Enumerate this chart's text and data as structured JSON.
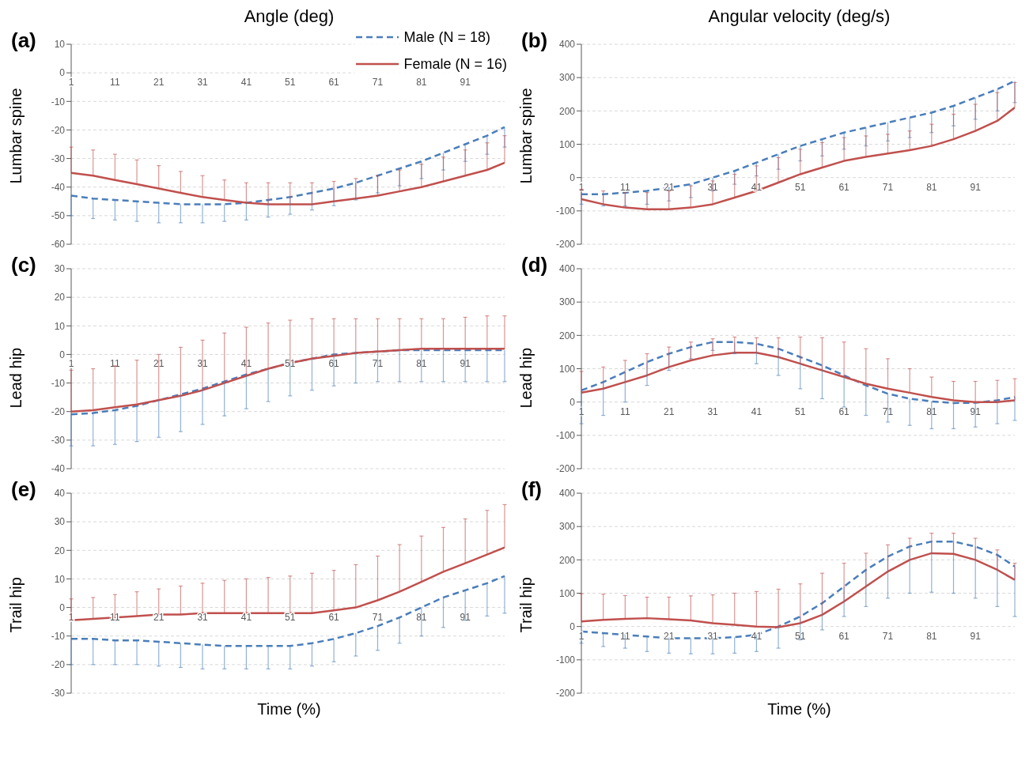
{
  "chart_data": [
    {
      "type": "line",
      "title": "Angle (deg)",
      "ylabel": "Lumbar spine",
      "annotations": [
        "(a)"
      ],
      "legend": "top right",
      "grid": "y",
      "marker": "none",
      "xlim": [
        1,
        100
      ],
      "xticks": [
        1,
        11,
        21,
        31,
        41,
        51,
        61,
        71,
        81,
        91
      ],
      "ylim": [
        -60,
        10
      ],
      "yticks": [
        -60,
        -50,
        -40,
        -30,
        -20,
        -10,
        0,
        10
      ],
      "x": [
        1,
        6,
        11,
        16,
        21,
        26,
        31,
        36,
        41,
        46,
        51,
        56,
        61,
        66,
        71,
        76,
        81,
        86,
        91,
        96,
        100
      ],
      "series": [
        {
          "name": "Male (N = 18)",
          "color": "#4a7ebb",
          "line_style": "dashed",
          "values": [
            -43,
            -44,
            -44.5,
            -45,
            -45.5,
            -46,
            -46,
            -46,
            -45.5,
            -44.5,
            -43.5,
            -42,
            -40.5,
            -38.5,
            -36,
            -33.5,
            -31,
            -28,
            -25,
            -22,
            -19
          ],
          "errors": [
            [
              -50,
              -43
            ],
            [
              -51,
              -44
            ],
            [
              -51.5,
              -44.5
            ],
            [
              -52,
              -45
            ],
            [
              -52.5,
              -45.5
            ],
            [
              -52.5,
              -46
            ],
            [
              -52.5,
              -46
            ],
            [
              -52,
              -46
            ],
            [
              -51.5,
              -45.5
            ],
            [
              -50.5,
              -44.5
            ],
            [
              -49.5,
              -43.5
            ],
            [
              -48,
              -42
            ],
            [
              -46.5,
              -40.5
            ],
            [
              -44.5,
              -38.5
            ],
            [
              -42,
              -36
            ],
            [
              -39.5,
              -33.5
            ],
            [
              -37,
              -31
            ],
            [
              -34,
              -28
            ],
            [
              -31,
              -25
            ],
            [
              -28.5,
              -22
            ],
            [
              -26,
              -19
            ]
          ]
        },
        {
          "name": "Female (N = 16)",
          "color": "#c0504d",
          "line_style": "solid",
          "values": [
            -35,
            -36,
            -37.5,
            -39,
            -40.5,
            -42,
            -43.5,
            -44.5,
            -45.5,
            -46,
            -46,
            -46,
            -45,
            -44,
            -43,
            -41.5,
            -40,
            -38,
            -36,
            -34,
            -31.5
          ],
          "errors": [
            [
              -35,
              -26
            ],
            [
              -36,
              -27
            ],
            [
              -37.5,
              -28.5
            ],
            [
              -39,
              -30.5
            ],
            [
              -40.5,
              -32.5
            ],
            [
              -42,
              -34.5
            ],
            [
              -43.5,
              -36
            ],
            [
              -44.5,
              -37.5
            ],
            [
              -45.5,
              -38.5
            ],
            [
              -46,
              -38.5
            ],
            [
              -46,
              -38.5
            ],
            [
              -46,
              -38.5
            ],
            [
              -45,
              -38
            ],
            [
              -44,
              -37
            ],
            [
              -43,
              -36
            ],
            [
              -41.5,
              -34
            ],
            [
              -40,
              -32
            ],
            [
              -38,
              -29.5
            ],
            [
              -36,
              -27
            ],
            [
              -34,
              -24.5
            ],
            [
              -31.5,
              -22
            ]
          ]
        }
      ]
    },
    {
      "type": "line",
      "title": "Angular velocity (deg/s)",
      "ylabel": "Lumbar spine",
      "annotations": [
        "(b)"
      ],
      "grid": "y",
      "marker": "none",
      "xlim": [
        1,
        100
      ],
      "xticks": [
        1,
        11,
        21,
        31,
        41,
        51,
        61,
        71,
        81,
        91
      ],
      "ylim": [
        -200,
        400
      ],
      "yticks": [
        -200,
        -100,
        0,
        100,
        200,
        300,
        400
      ],
      "x": [
        1,
        6,
        11,
        16,
        21,
        26,
        31,
        36,
        41,
        46,
        51,
        56,
        61,
        66,
        71,
        76,
        81,
        86,
        91,
        96,
        100
      ],
      "series": [
        {
          "color": "#4a7ebb",
          "line_style": "dashed",
          "values": [
            -50,
            -50,
            -45,
            -40,
            -30,
            -20,
            0,
            20,
            45,
            70,
            95,
            115,
            135,
            150,
            165,
            180,
            195,
            215,
            240,
            265,
            290
          ],
          "errors": [
            [
              -80,
              -50
            ],
            [
              -85,
              -50
            ],
            [
              -85,
              -45
            ],
            [
              -80,
              -40
            ],
            [
              -70,
              -30
            ],
            [
              -60,
              -20
            ],
            [
              -40,
              0
            ],
            [
              -20,
              20
            ],
            [
              5,
              45
            ],
            [
              25,
              70
            ],
            [
              50,
              95
            ],
            [
              65,
              115
            ],
            [
              85,
              135
            ],
            [
              95,
              150
            ],
            [
              110,
              165
            ],
            [
              120,
              180
            ],
            [
              135,
              195
            ],
            [
              155,
              215
            ],
            [
              175,
              240
            ],
            [
              200,
              265
            ],
            [
              225,
              290
            ]
          ]
        },
        {
          "color": "#c0504d",
          "line_style": "solid",
          "values": [
            -65,
            -80,
            -90,
            -95,
            -95,
            -90,
            -80,
            -60,
            -40,
            -15,
            10,
            30,
            50,
            62,
            72,
            82,
            95,
            115,
            140,
            170,
            210
          ],
          "errors": [
            [
              -65,
              -35
            ],
            [
              -80,
              -40
            ],
            [
              -90,
              -45
            ],
            [
              -95,
              -45
            ],
            [
              -95,
              -40
            ],
            [
              -90,
              -25
            ],
            [
              -80,
              -10
            ],
            [
              -60,
              10
            ],
            [
              -40,
              35
            ],
            [
              -15,
              60
            ],
            [
              10,
              85
            ],
            [
              30,
              105
            ],
            [
              50,
              120
            ],
            [
              62,
              125
            ],
            [
              72,
              130
            ],
            [
              82,
              140
            ],
            [
              95,
              160
            ],
            [
              115,
              190
            ],
            [
              140,
              220
            ],
            [
              170,
              255
            ],
            [
              210,
              285
            ]
          ]
        }
      ]
    },
    {
      "type": "line",
      "ylabel": "Lead hip",
      "annotations": [
        "(c)"
      ],
      "grid": "y",
      "marker": "none",
      "xlim": [
        1,
        100
      ],
      "xticks": [
        1,
        11,
        21,
        31,
        41,
        51,
        61,
        71,
        81,
        91
      ],
      "ylim": [
        -40,
        30
      ],
      "yticks": [
        -40,
        -30,
        -20,
        -10,
        0,
        10,
        20,
        30
      ],
      "x": [
        1,
        6,
        11,
        16,
        21,
        26,
        31,
        36,
        41,
        46,
        51,
        56,
        61,
        66,
        71,
        76,
        81,
        86,
        91,
        96,
        100
      ],
      "series": [
        {
          "color": "#4a7ebb",
          "line_style": "dashed",
          "values": [
            -21,
            -20.5,
            -19.5,
            -18,
            -16,
            -14,
            -12,
            -9.5,
            -7,
            -5,
            -3,
            -1.5,
            0,
            0.5,
            1,
            1.5,
            1.5,
            1.5,
            1.5,
            1.5,
            1.5
          ],
          "errors": [
            [
              -32,
              -21
            ],
            [
              -32,
              -20.5
            ],
            [
              -31.5,
              -19.5
            ],
            [
              -30.5,
              -18
            ],
            [
              -29,
              -16
            ],
            [
              -27,
              -14
            ],
            [
              -24.5,
              -12
            ],
            [
              -21.5,
              -9.5
            ],
            [
              -19,
              -7
            ],
            [
              -16.5,
              -5
            ],
            [
              -14.5,
              -3
            ],
            [
              -12.5,
              -1.5
            ],
            [
              -11,
              0
            ],
            [
              -10,
              0.5
            ],
            [
              -9.5,
              1
            ],
            [
              -9.5,
              1.5
            ],
            [
              -9.5,
              1.5
            ],
            [
              -9.5,
              1.5
            ],
            [
              -9.5,
              1.5
            ],
            [
              -9.5,
              1.5
            ],
            [
              -9.5,
              1.5
            ]
          ]
        },
        {
          "color": "#c0504d",
          "line_style": "solid",
          "values": [
            -20,
            -19.5,
            -18.5,
            -17.5,
            -16,
            -14.5,
            -12.5,
            -10,
            -7.5,
            -5,
            -3,
            -1.5,
            -0.5,
            0.5,
            1,
            1.5,
            2,
            2,
            2,
            2,
            2
          ],
          "errors": [
            [
              -20,
              -5.5
            ],
            [
              -19.5,
              -5
            ],
            [
              -18.5,
              -4
            ],
            [
              -17.5,
              -2
            ],
            [
              -16,
              0
            ],
            [
              -14.5,
              2.5
            ],
            [
              -12.5,
              5
            ],
            [
              -10,
              7.5
            ],
            [
              -7.5,
              9.5
            ],
            [
              -5,
              11
            ],
            [
              -3,
              12
            ],
            [
              -1.5,
              12.5
            ],
            [
              -0.5,
              12.5
            ],
            [
              0.5,
              12.5
            ],
            [
              1,
              12.5
            ],
            [
              1.5,
              12.5
            ],
            [
              2,
              12.5
            ],
            [
              2,
              12.5
            ],
            [
              2,
              13
            ],
            [
              2,
              13.5
            ],
            [
              2,
              13.5
            ]
          ]
        }
      ]
    },
    {
      "type": "line",
      "ylabel": "Lead hip",
      "annotations": [
        "(d)"
      ],
      "grid": "y",
      "marker": "none",
      "xlim": [
        1,
        100
      ],
      "xticks": [
        1,
        11,
        21,
        31,
        41,
        51,
        61,
        71,
        81,
        91
      ],
      "ylim": [
        -200,
        400
      ],
      "yticks": [
        -200,
        -100,
        0,
        100,
        200,
        300,
        400
      ],
      "x": [
        1,
        6,
        11,
        16,
        21,
        26,
        31,
        36,
        41,
        46,
        51,
        56,
        61,
        66,
        71,
        76,
        81,
        86,
        91,
        96,
        100
      ],
      "series": [
        {
          "color": "#4a7ebb",
          "line_style": "dashed",
          "values": [
            35,
            60,
            90,
            120,
            145,
            165,
            180,
            180,
            175,
            160,
            135,
            110,
            80,
            50,
            25,
            10,
            2,
            -3,
            -2,
            5,
            15
          ],
          "errors": [
            [
              -65,
              35
            ],
            [
              -40,
              60
            ],
            [
              0,
              90
            ],
            [
              50,
              120
            ],
            [
              95,
              145
            ],
            [
              130,
              165
            ],
            [
              155,
              180
            ],
            [
              145,
              180
            ],
            [
              115,
              175
            ],
            [
              80,
              160
            ],
            [
              40,
              135
            ],
            [
              10,
              110
            ],
            [
              -15,
              80
            ],
            [
              -40,
              50
            ],
            [
              -60,
              25
            ],
            [
              -70,
              10
            ],
            [
              -80,
              2
            ],
            [
              -80,
              -3
            ],
            [
              -75,
              -2
            ],
            [
              -65,
              5
            ],
            [
              -55,
              15
            ]
          ]
        },
        {
          "color": "#c0504d",
          "line_style": "solid",
          "values": [
            28,
            40,
            60,
            80,
            105,
            125,
            140,
            148,
            148,
            135,
            115,
            95,
            75,
            55,
            40,
            28,
            15,
            5,
            0,
            0,
            5
          ],
          "errors": [
            [
              28,
              92
            ],
            [
              40,
              105
            ],
            [
              60,
              125
            ],
            [
              80,
              145
            ],
            [
              105,
              165
            ],
            [
              125,
              180
            ],
            [
              140,
              190
            ],
            [
              148,
              195
            ],
            [
              148,
              193
            ],
            [
              135,
              193
            ],
            [
              115,
              195
            ],
            [
              95,
              193
            ],
            [
              75,
              180
            ],
            [
              55,
              160
            ],
            [
              40,
              130
            ],
            [
              28,
              100
            ],
            [
              15,
              75
            ],
            [
              5,
              62
            ],
            [
              0,
              62
            ],
            [
              0,
              65
            ],
            [
              5,
              70
            ]
          ]
        }
      ]
    },
    {
      "type": "line",
      "xlabel": "Time (%)",
      "ylabel": "Trail hip",
      "annotations": [
        "(e)"
      ],
      "grid": "y",
      "marker": "none",
      "xlim": [
        1,
        100
      ],
      "xticks": [
        1,
        11,
        21,
        31,
        41,
        51,
        61,
        71,
        81,
        91
      ],
      "ylim": [
        -30,
        40
      ],
      "yticks": [
        -30,
        -20,
        -10,
        0,
        10,
        20,
        30,
        40
      ],
      "x": [
        1,
        6,
        11,
        16,
        21,
        26,
        31,
        36,
        41,
        46,
        51,
        56,
        61,
        66,
        71,
        76,
        81,
        86,
        91,
        96,
        100
      ],
      "series": [
        {
          "color": "#4a7ebb",
          "line_style": "dashed",
          "values": [
            -11,
            -11,
            -11.5,
            -11.5,
            -12,
            -12.5,
            -13,
            -13.5,
            -13.5,
            -13.5,
            -13.5,
            -12.5,
            -11,
            -9,
            -6.5,
            -3.5,
            0,
            3.5,
            6,
            8.5,
            11
          ],
          "errors": [
            [
              -20,
              -11
            ],
            [
              -20,
              -11
            ],
            [
              -20,
              -11.5
            ],
            [
              -20,
              -11.5
            ],
            [
              -20.5,
              -12
            ],
            [
              -21,
              -12.5
            ],
            [
              -21.5,
              -13
            ],
            [
              -21.5,
              -13.5
            ],
            [
              -21.5,
              -13.5
            ],
            [
              -21.5,
              -13.5
            ],
            [
              -21.5,
              -13.5
            ],
            [
              -20.5,
              -12.5
            ],
            [
              -19,
              -11
            ],
            [
              -17,
              -9
            ],
            [
              -15,
              -6.5
            ],
            [
              -12.5,
              -3.5
            ],
            [
              -10,
              0
            ],
            [
              -7,
              3.5
            ],
            [
              -4.5,
              6
            ],
            [
              -3,
              8.5
            ],
            [
              -2,
              11
            ]
          ]
        },
        {
          "color": "#c0504d",
          "line_style": "solid",
          "values": [
            -4.5,
            -4,
            -3.5,
            -3,
            -2.5,
            -2.5,
            -2,
            -2,
            -2,
            -2,
            -2,
            -2,
            -1,
            0,
            2.5,
            5.5,
            9,
            12.5,
            15.5,
            18.5,
            21
          ],
          "errors": [
            [
              -4.5,
              3
            ],
            [
              -4,
              3.5
            ],
            [
              -3.5,
              4.5
            ],
            [
              -3,
              5.5
            ],
            [
              -2.5,
              6.5
            ],
            [
              -2.5,
              7.5
            ],
            [
              -2,
              8.5
            ],
            [
              -2,
              9.5
            ],
            [
              -2,
              10
            ],
            [
              -2,
              10.5
            ],
            [
              -2,
              11
            ],
            [
              -2,
              12
            ],
            [
              -1,
              13
            ],
            [
              0,
              15
            ],
            [
              2.5,
              18
            ],
            [
              5.5,
              22
            ],
            [
              9,
              25
            ],
            [
              12.5,
              28
            ],
            [
              15.5,
              31
            ],
            [
              18.5,
              34
            ],
            [
              21,
              36
            ]
          ]
        }
      ]
    },
    {
      "type": "line",
      "xlabel": "Time (%)",
      "ylabel": "Trail hip",
      "annotations": [
        "(f)"
      ],
      "grid": "y",
      "marker": "none",
      "xlim": [
        1,
        100
      ],
      "xticks": [
        1,
        11,
        21,
        31,
        41,
        51,
        61,
        71,
        81,
        91
      ],
      "ylim": [
        -200,
        400
      ],
      "yticks": [
        -200,
        -100,
        0,
        100,
        200,
        300,
        400
      ],
      "x": [
        1,
        6,
        11,
        16,
        21,
        26,
        31,
        36,
        41,
        46,
        51,
        56,
        61,
        66,
        71,
        76,
        81,
        86,
        91,
        96,
        100
      ],
      "series": [
        {
          "color": "#4a7ebb",
          "line_style": "dashed",
          "values": [
            -15,
            -20,
            -25,
            -30,
            -35,
            -35,
            -35,
            -32,
            -25,
            0,
            30,
            70,
            120,
            170,
            210,
            240,
            255,
            255,
            240,
            215,
            180
          ],
          "errors": [
            [
              -50,
              -15
            ],
            [
              -60,
              -20
            ],
            [
              -65,
              -25
            ],
            [
              -75,
              -30
            ],
            [
              -80,
              -35
            ],
            [
              -82,
              -35
            ],
            [
              -82,
              -35
            ],
            [
              -80,
              -32
            ],
            [
              -75,
              -25
            ],
            [
              -65,
              0
            ],
            [
              -40,
              30
            ],
            [
              -10,
              70
            ],
            [
              30,
              120
            ],
            [
              60,
              170
            ],
            [
              85,
              210
            ],
            [
              100,
              240
            ],
            [
              103,
              255
            ],
            [
              100,
              255
            ],
            [
              85,
              240
            ],
            [
              60,
              215
            ],
            [
              30,
              180
            ]
          ]
        },
        {
          "color": "#c0504d",
          "line_style": "solid",
          "values": [
            15,
            20,
            23,
            25,
            22,
            18,
            10,
            5,
            0,
            -2,
            10,
            35,
            75,
            120,
            165,
            200,
            220,
            218,
            200,
            170,
            140
          ],
          "errors": [
            [
              15,
              98
            ],
            [
              20,
              97
            ],
            [
              23,
              93
            ],
            [
              25,
              88
            ],
            [
              22,
              88
            ],
            [
              18,
              92
            ],
            [
              10,
              95
            ],
            [
              5,
              100
            ],
            [
              0,
              105
            ],
            [
              -2,
              112
            ],
            [
              10,
              128
            ],
            [
              35,
              160
            ],
            [
              75,
              190
            ],
            [
              120,
              220
            ],
            [
              165,
              245
            ],
            [
              200,
              265
            ],
            [
              220,
              280
            ],
            [
              218,
              280
            ],
            [
              200,
              265
            ],
            [
              170,
              230
            ],
            [
              140,
              190
            ]
          ]
        }
      ]
    }
  ]
}
